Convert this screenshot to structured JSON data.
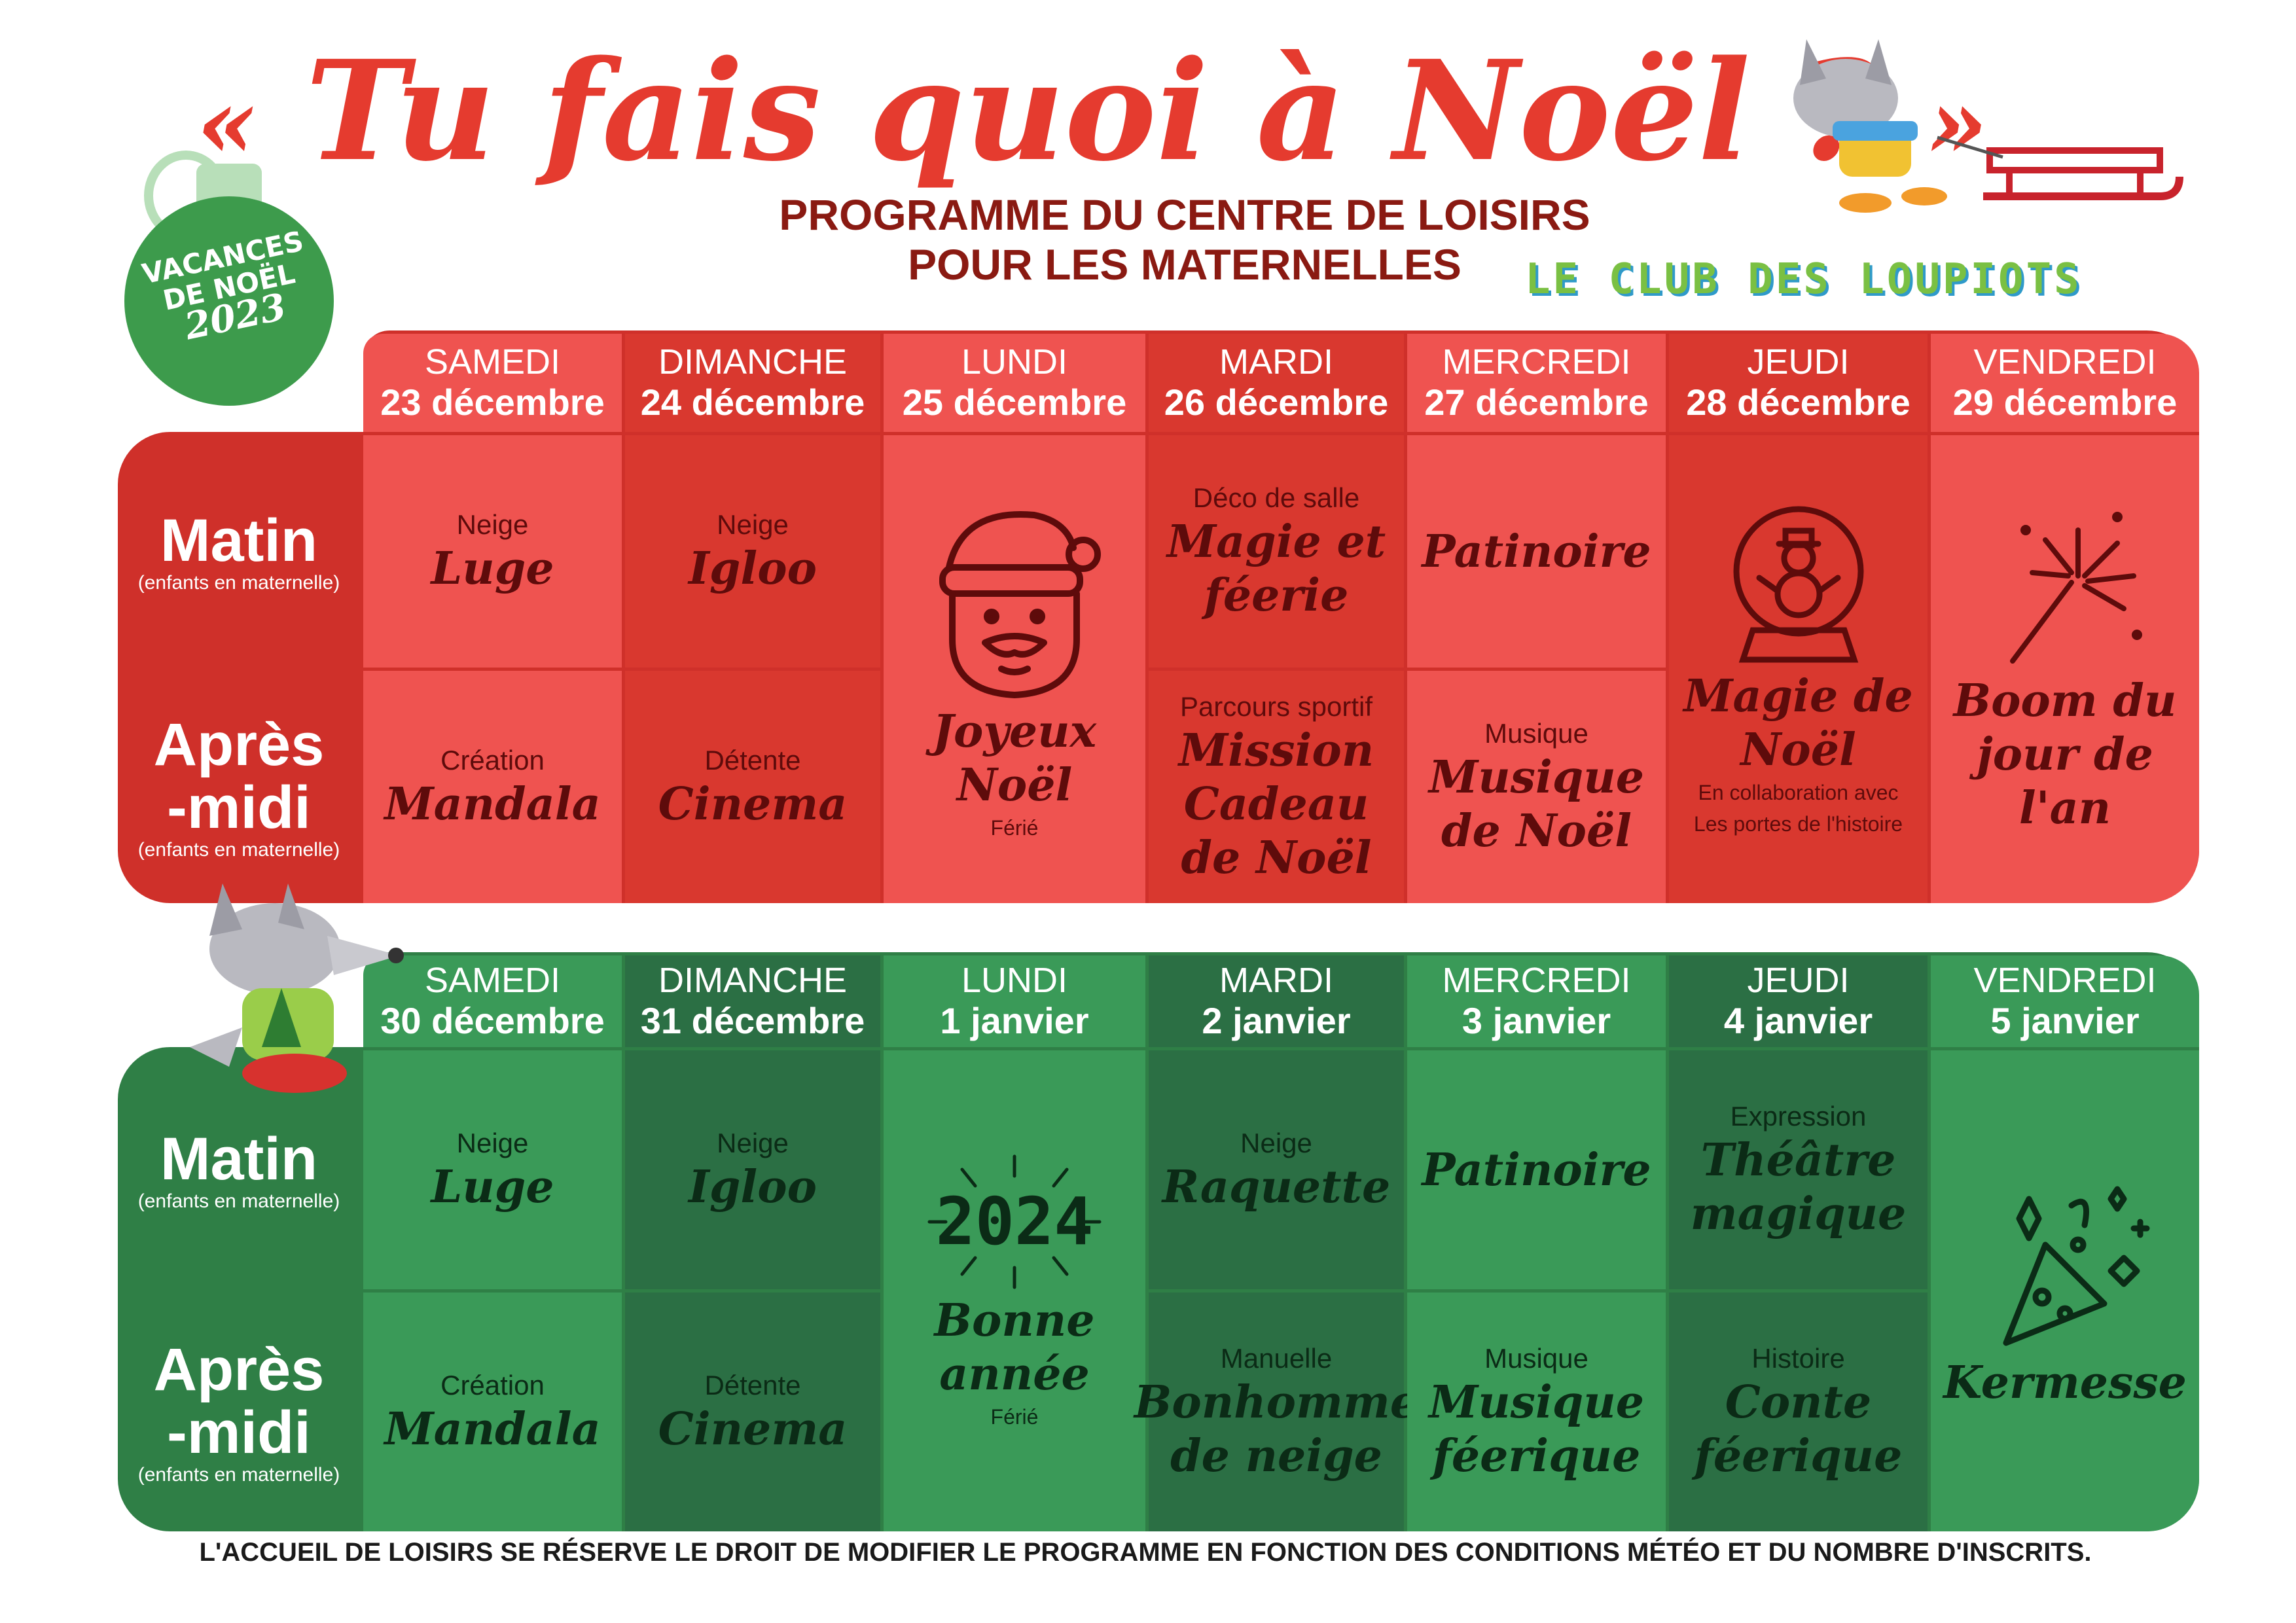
{
  "header": {
    "quote_open": "«",
    "title": "Tu fais quoi à Noël ?",
    "quote_close": "»",
    "subtitle_line1": "PROGRAMME DU CENTRE DE LOISIRS",
    "subtitle_line2": "POUR LES MATERNELLES",
    "club": "LE CLUB DES LOUPIOTS"
  },
  "badge": {
    "line1": "VACANCES",
    "line2": "DE NOËL",
    "year": "2023"
  },
  "rows": {
    "matin": "Matin",
    "apres": "Après\n-midi",
    "note": "(enfants en maternelle)"
  },
  "week1": {
    "days": [
      {
        "day": "SAMEDI",
        "date": "23 décembre"
      },
      {
        "day": "DIMANCHE",
        "date": "24 décembre"
      },
      {
        "day": "LUNDI",
        "date": "25 décembre"
      },
      {
        "day": "MARDI",
        "date": "26 décembre"
      },
      {
        "day": "MERCREDI",
        "date": "27 décembre"
      },
      {
        "day": "JEUDI",
        "date": "28 décembre"
      },
      {
        "day": "VENDREDI",
        "date": "29 décembre"
      }
    ],
    "sat_am": {
      "cat": "Neige",
      "act": "Luge"
    },
    "sun_am": {
      "cat": "Neige",
      "act": "Igloo"
    },
    "sat_pm": {
      "cat": "Création",
      "act": "Mandala"
    },
    "sun_pm": {
      "cat": "Détente",
      "act": "Cinema"
    },
    "mon": {
      "act": "Joyeux Noël",
      "note": "Férié",
      "icon": "santa-icon"
    },
    "tue_am": {
      "cat": "Déco de salle",
      "act": "Magie et féerie"
    },
    "tue_pm": {
      "cat": "Parcours sportif",
      "act": "Mission Cadeau de Noël"
    },
    "wed_am": {
      "act": "Patinoire"
    },
    "wed_pm": {
      "cat": "Musique",
      "act": "Musique de Noël"
    },
    "thu": {
      "act": "Magie de Noël",
      "note1": "En collaboration avec",
      "note2": "Les portes de l'histoire",
      "icon": "snow-globe-icon"
    },
    "fri": {
      "act": "Boom du jour de l'an",
      "icon": "sparkler-icon"
    }
  },
  "week2": {
    "days": [
      {
        "day": "SAMEDI",
        "date": "30 décembre"
      },
      {
        "day": "DIMANCHE",
        "date": "31 décembre"
      },
      {
        "day": "LUNDI",
        "date": "1 janvier"
      },
      {
        "day": "MARDI",
        "date": "2 janvier"
      },
      {
        "day": "MERCREDI",
        "date": "3 janvier"
      },
      {
        "day": "JEUDI",
        "date": "4 janvier"
      },
      {
        "day": "VENDREDI",
        "date": "5 janvier"
      }
    ],
    "sat_am": {
      "cat": "Neige",
      "act": "Luge"
    },
    "sun_am": {
      "cat": "Neige",
      "act": "Igloo"
    },
    "sat_pm": {
      "cat": "Création",
      "act": "Mandala"
    },
    "sun_pm": {
      "cat": "Détente",
      "act": "Cinema"
    },
    "mon": {
      "year": "2024",
      "act": "Bonne année",
      "note": "Férié"
    },
    "tue_am": {
      "cat": "Neige",
      "act": "Raquette"
    },
    "tue_pm": {
      "cat": "Manuelle",
      "act": "Bonhomme de neige"
    },
    "wed_am": {
      "act": "Patinoire"
    },
    "wed_pm": {
      "cat": "Musique",
      "act": "Musique féerique"
    },
    "thu_am": {
      "cat": "Expression",
      "act": "Théâtre magique"
    },
    "thu_pm": {
      "cat": "Histoire",
      "act": "Conte féerique"
    },
    "fri": {
      "act": "Kermesse",
      "icon": "party-popper-icon"
    }
  },
  "footer": "L'ACCUEIL DE LOISIRS SE RÉSERVE LE DROIT DE MODIFIER LE PROGRAMME EN FONCTION DES CONDITIONS MÉTÉO ET DU NOMBRE D'INSCRITS.",
  "colors": {
    "red_light": "#ef5350",
    "red_dark": "#d9382f",
    "green_light": "#3a9a58",
    "green_dark": "#2b6f44",
    "title_red": "#e53b2f"
  }
}
